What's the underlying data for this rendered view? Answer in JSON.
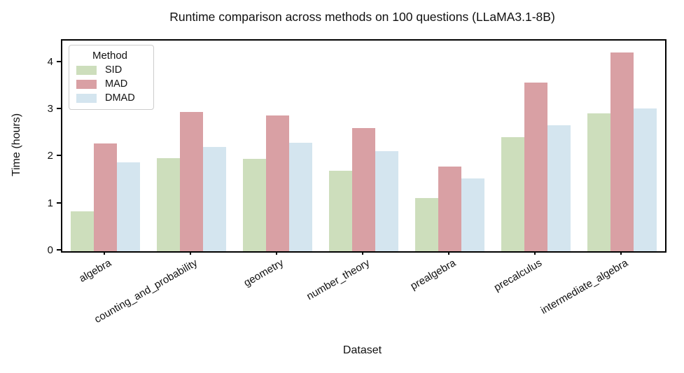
{
  "title": "Runtime comparison across methods on 100 questions (LLaMA3.1-8B)",
  "chart_data": {
    "type": "bar",
    "title": "Runtime comparison across methods on 100 questions (LLaMA3.1-8B)",
    "xlabel": "Dataset",
    "ylabel": "Time (hours)",
    "categories": [
      "algebra",
      "counting_and_probability",
      "geometry",
      "number_theory",
      "prealgebra",
      "precalculus",
      "intermediate_algebra"
    ],
    "series": [
      {
        "name": "SID",
        "color": "#cddebc",
        "values": [
          0.85,
          1.97,
          1.96,
          1.71,
          1.13,
          2.42,
          2.93
        ]
      },
      {
        "name": "MAD",
        "color": "#d9a0a4",
        "values": [
          2.28,
          2.95,
          2.88,
          2.62,
          1.8,
          3.58,
          4.22
        ]
      },
      {
        "name": "DMAD",
        "color": "#d4e5ef",
        "values": [
          1.88,
          2.21,
          2.3,
          2.12,
          1.55,
          2.68,
          3.03
        ]
      }
    ],
    "ylim": [
      0,
      4.47
    ],
    "yticks": [
      0,
      1,
      2,
      3,
      4
    ],
    "legend": {
      "title": "Method",
      "position": "upper-left"
    },
    "grid": false
  }
}
